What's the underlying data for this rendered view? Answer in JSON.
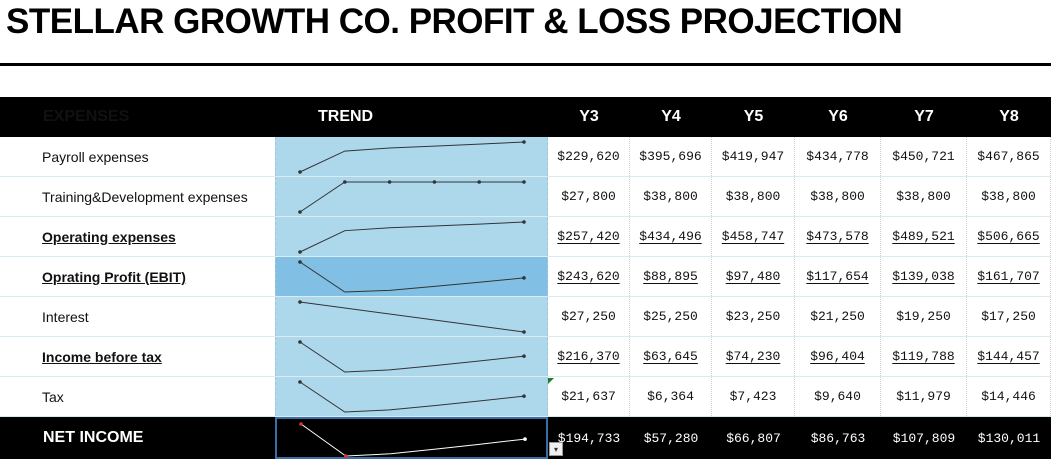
{
  "title": "STELLAR GROWTH CO. PROFIT & LOSS PROJECTION",
  "header": {
    "expenses": "EXPENSES",
    "trend": "TREND",
    "years": [
      "Y3",
      "Y4",
      "Y5",
      "Y6",
      "Y7",
      "Y8"
    ]
  },
  "rows": [
    {
      "label": "Payroll expenses",
      "bold": false,
      "values": [
        "$229,620",
        "$395,696",
        "$419,947",
        "$434,778",
        "$450,721",
        "$467,865"
      ],
      "trend": [
        229620,
        395696,
        419947,
        434778,
        450721,
        467865
      ],
      "markers": false
    },
    {
      "label": "Training&Development expenses",
      "bold": false,
      "values": [
        "$27,800",
        "$38,800",
        "$38,800",
        "$38,800",
        "$38,800",
        "$38,800"
      ],
      "trend": [
        27800,
        38800,
        38800,
        38800,
        38800,
        38800
      ],
      "markers": true
    },
    {
      "label": "Operating expenses",
      "bold": true,
      "values": [
        "$257,420",
        "$434,496",
        "$458,747",
        "$473,578",
        "$489,521",
        "$506,665"
      ],
      "trend": [
        257420,
        434496,
        458747,
        473578,
        489521,
        506665
      ],
      "markers": false
    },
    {
      "label": "Oprating Profit (EBIT)",
      "bold": true,
      "values": [
        "$243,620",
        "$88,895",
        "$97,480",
        "$117,654",
        "$139,038",
        "$161,707"
      ],
      "trend": [
        243620,
        88895,
        97480,
        117654,
        139038,
        161707
      ],
      "markers": false,
      "highlight": true
    },
    {
      "label": "Interest",
      "bold": false,
      "values": [
        "$27,250",
        "$25,250",
        "$23,250",
        "$21,250",
        "$19,250",
        "$17,250"
      ],
      "trend": [
        27250,
        25250,
        23250,
        21250,
        19250,
        17250
      ],
      "markers": false
    },
    {
      "label": "Income before tax",
      "bold": true,
      "values": [
        "$216,370",
        "$63,645",
        "$74,230",
        "$96,404",
        "$119,788",
        "$144,457"
      ],
      "trend": [
        216370,
        63645,
        74230,
        96404,
        119788,
        144457
      ],
      "markers": false
    },
    {
      "label": "Tax",
      "bold": false,
      "values": [
        "$21,637",
        "$6,364",
        "$7,423",
        "$9,640",
        "$11,979",
        "$14,446"
      ],
      "trend": [
        21637,
        6364,
        7423,
        9640,
        11979,
        14446
      ],
      "markers": false
    }
  ],
  "net_income": {
    "label": "NET INCOME",
    "values": [
      "$194,733",
      "$57,280",
      "$66,807",
      "$86,763",
      "$107,809",
      "$130,011"
    ],
    "trend": [
      194733,
      57280,
      66807,
      86763,
      107809,
      130011
    ]
  },
  "colors": {
    "trend_bg": "#add8ec",
    "trend_highlight": "#82bfe4",
    "header_bg": "#000000",
    "net_line": "#ffffff",
    "net_point": "#e03030"
  }
}
